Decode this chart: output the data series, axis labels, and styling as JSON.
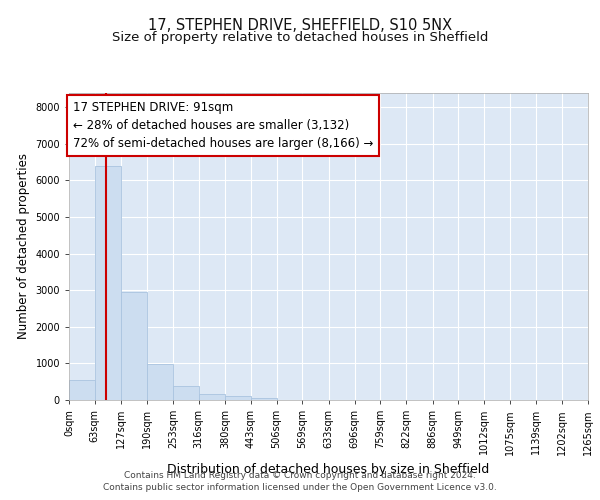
{
  "title1": "17, STEPHEN DRIVE, SHEFFIELD, S10 5NX",
  "title2": "Size of property relative to detached houses in Sheffield",
  "xlabel": "Distribution of detached houses by size in Sheffield",
  "ylabel": "Number of detached properties",
  "bar_color": "#ccddf0",
  "bar_edge_color": "#aac4e0",
  "plot_bg_color": "#dde8f5",
  "fig_bg_color": "#ffffff",
  "grid_color": "#ffffff",
  "bin_edges": [
    0,
    63,
    127,
    190,
    253,
    316,
    380,
    443,
    506,
    569,
    633,
    696,
    759,
    822,
    886,
    949,
    1012,
    1075,
    1139,
    1202,
    1265
  ],
  "bin_labels": [
    "0sqm",
    "63sqm",
    "127sqm",
    "190sqm",
    "253sqm",
    "316sqm",
    "380sqm",
    "443sqm",
    "506sqm",
    "569sqm",
    "633sqm",
    "696sqm",
    "759sqm",
    "822sqm",
    "886sqm",
    "949sqm",
    "1012sqm",
    "1075sqm",
    "1139sqm",
    "1202sqm",
    "1265sqm"
  ],
  "bar_heights": [
    550,
    6400,
    2950,
    980,
    370,
    175,
    105,
    65,
    0,
    0,
    0,
    0,
    0,
    0,
    0,
    0,
    0,
    0,
    0,
    0
  ],
  "property_size": 91,
  "red_line_color": "#cc0000",
  "annotation_box_color": "#ffffff",
  "annotation_border_color": "#cc0000",
  "annotation_text1": "17 STEPHEN DRIVE: 91sqm",
  "annotation_text2": "← 28% of detached houses are smaller (3,132)",
  "annotation_text3": "72% of semi-detached houses are larger (8,166) →",
  "ylim": [
    0,
    8400
  ],
  "yticks": [
    0,
    1000,
    2000,
    3000,
    4000,
    5000,
    6000,
    7000,
    8000
  ],
  "xlim_max": 1265,
  "footer1": "Contains HM Land Registry data © Crown copyright and database right 2024.",
  "footer2": "Contains public sector information licensed under the Open Government Licence v3.0.",
  "title1_fontsize": 10.5,
  "title2_fontsize": 9.5,
  "xlabel_fontsize": 9,
  "ylabel_fontsize": 8.5,
  "tick_fontsize": 7,
  "annotation_fontsize": 8.5,
  "footer_fontsize": 6.5
}
